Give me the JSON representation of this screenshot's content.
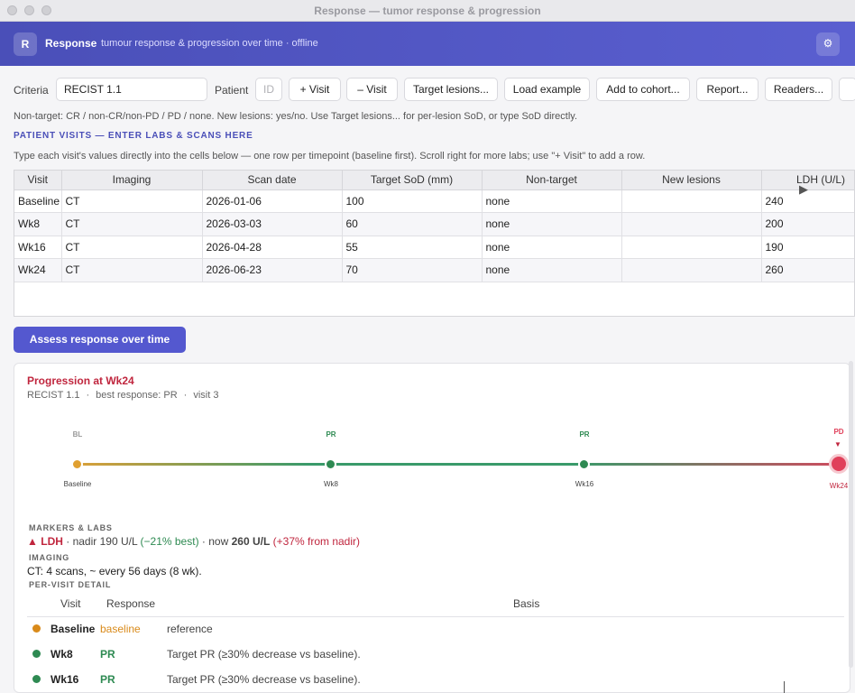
{
  "window": {
    "title": "Response — tumor response & progression"
  },
  "appbar": {
    "logo": "R",
    "name": "Response",
    "subtitle": "tumour response & progression over time · offline",
    "gear_icon": "gear-icon"
  },
  "toolbar": {
    "criteria_label": "Criteria",
    "criteria_value": "RECIST 1.1",
    "patient_label": "Patient",
    "patient_placeholder": "ID",
    "buttons": [
      "+ Visit",
      "– Visit",
      "Target lesions...",
      "Load example",
      "Add to cohort...",
      "Report...",
      "Readers..."
    ]
  },
  "hints": {
    "line1": "Non-target: CR / non-CR/non-PD / PD / none. New lesions: yes/no. Use Target lesions... for per-lesion SoD, or type SoD directly.",
    "section": "PATIENT VISITS — ENTER LABS & SCANS HERE",
    "line2": "Type each visit's values directly into the cells below — one row per timepoint (baseline first). Scroll right for more labs; use \"+ Visit\" to add a row."
  },
  "grid": {
    "columns": [
      "Visit",
      "Imaging",
      "Scan date",
      "Target SoD (mm)",
      "Non-target",
      "New lesions",
      "LDH (U/L)"
    ],
    "rows": [
      [
        "Baseline",
        "CT",
        "2026-01-06",
        "100",
        "none",
        "",
        "240"
      ],
      [
        "Wk8",
        "CT",
        "2026-03-03",
        "60",
        "none",
        "",
        "200"
      ],
      [
        "Wk16",
        "CT",
        "2026-04-28",
        "55",
        "none",
        "",
        "190"
      ],
      [
        "Wk24",
        "CT",
        "2026-06-23",
        "70",
        "none",
        "",
        "260"
      ]
    ]
  },
  "assess_button": "Assess response over time",
  "result": {
    "title": "Progression at Wk24",
    "criteria": "RECIST 1.1",
    "best": "best response: PR",
    "visit": "visit 3",
    "timeline": [
      {
        "tag": "BL",
        "name": "Baseline",
        "color": "#e0a030"
      },
      {
        "tag": "PR",
        "name": "Wk8",
        "color": "#2e8a52"
      },
      {
        "tag": "PR",
        "name": "Wk16",
        "color": "#2e8a52"
      },
      {
        "tag": "PD",
        "name": "Wk24",
        "color": "#e0405a"
      }
    ],
    "markers_head": "MARKERS & LABS",
    "ldh": {
      "arrow": "▲",
      "name": "LDH",
      "nadir": "· nadir 190 U/L",
      "best": "(−21% best)",
      "now_prefix": "· now",
      "now_value": "260 U/L",
      "change": "(+37% from nadir)"
    },
    "imaging_head": "IMAGING",
    "imaging_text": "CT: 4 scans, ~ every 56 days (8 wk).",
    "detail_head": "PER-VISIT DETAIL",
    "detail_columns": [
      "Visit",
      "Response",
      "Basis"
    ],
    "detail_rows": [
      {
        "visit": "Baseline",
        "response": "baseline",
        "basis": "reference",
        "color": "#d98a1a"
      },
      {
        "visit": "Wk8",
        "response": "PR",
        "basis": "Target PR (≥30% decrease vs baseline).",
        "color": "#2e8a52"
      },
      {
        "visit": "Wk16",
        "response": "PR",
        "basis": "Target PR (≥30% decrease vs baseline).",
        "color": "#2e8a52"
      }
    ]
  }
}
